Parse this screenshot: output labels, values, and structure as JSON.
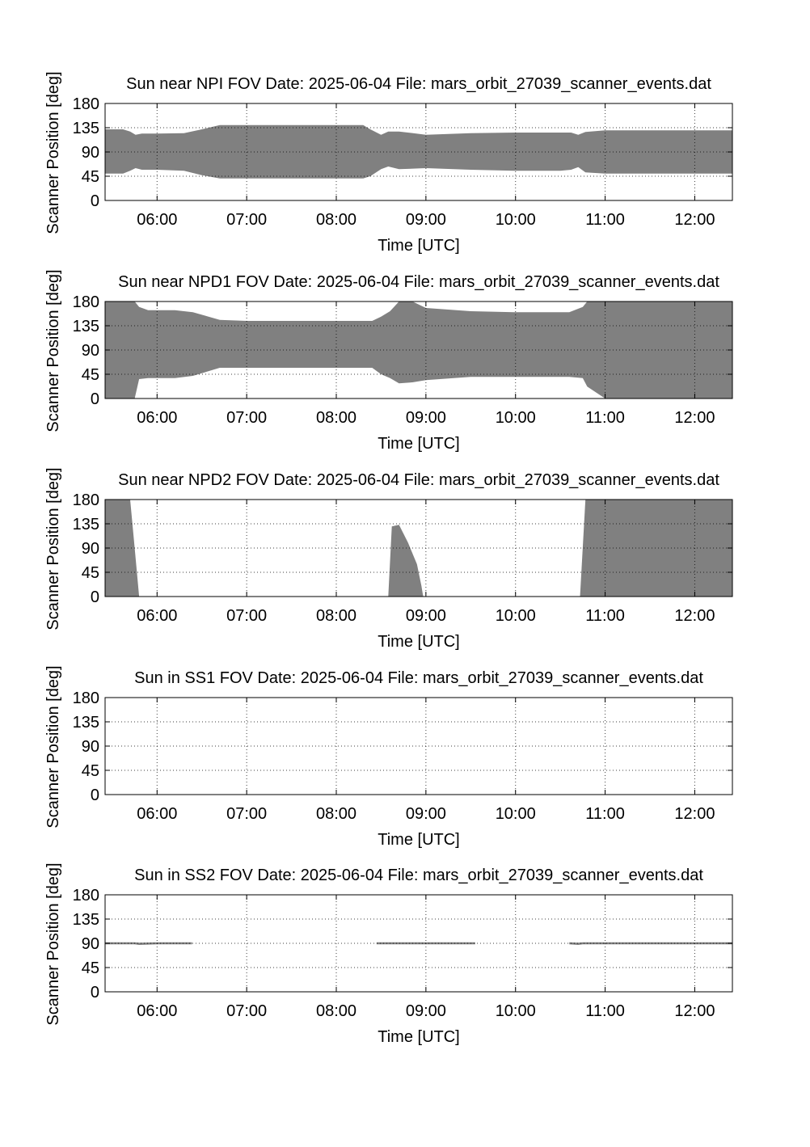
{
  "chart_data": [
    {
      "type": "area",
      "title": "Sun near NPI FOV   Date: 2025-06-04   File: mars_orbit_27039_scanner_events.dat",
      "xlabel": "Time [UTC]",
      "ylabel": "Scanner Position [deg]",
      "xticks": [
        "06:00",
        "07:00",
        "08:00",
        "09:00",
        "10:00",
        "11:00",
        "12:00"
      ],
      "yticks": [
        "0",
        "45",
        "90",
        "135",
        "180"
      ],
      "xlim_hours": [
        5.42,
        12.42
      ],
      "ylim": [
        0,
        180
      ],
      "grid": true,
      "fill_color": "#808080",
      "regions": [
        {
          "x": [
            5.42,
            5.62,
            5.7,
            5.76,
            5.83,
            6.0,
            6.3,
            6.5,
            6.7,
            7.0,
            7.5,
            8.0,
            8.3,
            8.38,
            8.5,
            8.58,
            8.7,
            9.0,
            9.5,
            10.0,
            10.5,
            10.62,
            10.7,
            10.78,
            11.0,
            11.5,
            12.0,
            12.42
          ],
          "upper": [
            132,
            132,
            128,
            122,
            124,
            124,
            125,
            132,
            140,
            140,
            140,
            140,
            140,
            132,
            122,
            128,
            128,
            122,
            125,
            126,
            126,
            126,
            122,
            127,
            130,
            130,
            130,
            130
          ],
          "lower": [
            50,
            50,
            55,
            60,
            57,
            57,
            55,
            47,
            41,
            41,
            41,
            41,
            41,
            45,
            58,
            63,
            58,
            60,
            57,
            55,
            55,
            57,
            62,
            52,
            50,
            50,
            50,
            50
          ]
        }
      ]
    },
    {
      "type": "area",
      "title": "Sun near NPD1 FOV   Date: 2025-06-04   File: mars_orbit_27039_scanner_events.dat",
      "xlabel": "Time [UTC]",
      "ylabel": "Scanner Position [deg]",
      "xticks": [
        "06:00",
        "07:00",
        "08:00",
        "09:00",
        "10:00",
        "11:00",
        "12:00"
      ],
      "yticks": [
        "0",
        "45",
        "90",
        "135",
        "180"
      ],
      "xlim_hours": [
        5.42,
        12.42
      ],
      "ylim": [
        0,
        180
      ],
      "grid": true,
      "fill_color": "#808080",
      "regions": [
        {
          "x": [
            5.42,
            5.75,
            5.8,
            5.9,
            6.2,
            6.4,
            6.7,
            7.0,
            8.0,
            8.4,
            8.5,
            8.6,
            8.7,
            8.85,
            9.0,
            9.5,
            10.0,
            10.4,
            10.6,
            10.75,
            10.8,
            11.0,
            12.42
          ],
          "upper": [
            180,
            180,
            170,
            164,
            164,
            160,
            146,
            144,
            144,
            144,
            152,
            162,
            180,
            180,
            168,
            162,
            160,
            160,
            160,
            170,
            180,
            180,
            180
          ],
          "lower": [
            0,
            0,
            36,
            38,
            38,
            42,
            57,
            57,
            57,
            57,
            45,
            38,
            28,
            30,
            34,
            40,
            40,
            40,
            40,
            38,
            22,
            0,
            0
          ]
        }
      ]
    },
    {
      "type": "area",
      "title": "Sun near NPD2 FOV   Date: 2025-06-04   File: mars_orbit_27039_scanner_events.dat",
      "xlabel": "Time [UTC]",
      "ylabel": "Scanner Position [deg]",
      "xticks": [
        "06:00",
        "07:00",
        "08:00",
        "09:00",
        "10:00",
        "11:00",
        "12:00"
      ],
      "yticks": [
        "0",
        "45",
        "90",
        "135",
        "180"
      ],
      "xlim_hours": [
        5.42,
        12.42
      ],
      "ylim": [
        0,
        180
      ],
      "grid": true,
      "fill_color": "#808080",
      "regions": [
        {
          "x": [
            5.42,
            5.7,
            5.75,
            5.8
          ],
          "upper": [
            180,
            180,
            90,
            0
          ],
          "lower": [
            0,
            0,
            0,
            0
          ]
        },
        {
          "x": [
            8.58,
            8.62,
            8.7,
            8.8,
            8.9,
            8.95,
            8.97
          ],
          "upper": [
            0,
            130,
            133,
            100,
            60,
            20,
            0
          ],
          "lower": [
            0,
            0,
            0,
            0,
            0,
            0,
            0
          ]
        },
        {
          "x": [
            10.72,
            10.78,
            12.42
          ],
          "upper": [
            0,
            180,
            180
          ],
          "lower": [
            0,
            0,
            0
          ]
        }
      ]
    },
    {
      "type": "area",
      "title": "Sun in SS1 FOV   Date: 2025-06-04   File: mars_orbit_27039_scanner_events.dat",
      "xlabel": "Time [UTC]",
      "ylabel": "Scanner Position [deg]",
      "xticks": [
        "06:00",
        "07:00",
        "08:00",
        "09:00",
        "10:00",
        "11:00",
        "12:00"
      ],
      "yticks": [
        "0",
        "45",
        "90",
        "135",
        "180"
      ],
      "xlim_hours": [
        5.42,
        12.42
      ],
      "ylim": [
        0,
        180
      ],
      "grid": true,
      "fill_color": "#808080",
      "regions": []
    },
    {
      "type": "area",
      "title": "Sun in SS2 FOV   Date: 2025-06-04   File: mars_orbit_27039_scanner_events.dat",
      "xlabel": "Time [UTC]",
      "ylabel": "Scanner Position [deg]",
      "xticks": [
        "06:00",
        "07:00",
        "08:00",
        "09:00",
        "10:00",
        "11:00",
        "12:00"
      ],
      "yticks": [
        "0",
        "45",
        "90",
        "135",
        "180"
      ],
      "xlim_hours": [
        5.42,
        12.42
      ],
      "ylim": [
        0,
        180
      ],
      "grid": true,
      "fill_color": "#808080",
      "regions": [
        {
          "x": [
            5.42,
            5.75,
            5.8,
            6.0,
            6.39
          ],
          "upper": [
            92,
            92,
            91,
            92,
            92
          ],
          "lower": [
            88,
            88,
            87,
            88,
            88
          ]
        },
        {
          "x": [
            8.45,
            9.0,
            9.55
          ],
          "upper": [
            92,
            92,
            92
          ],
          "lower": [
            88,
            88,
            88
          ]
        },
        {
          "x": [
            10.6,
            10.7,
            10.75,
            11.0,
            12.42
          ],
          "upper": [
            92,
            91,
            92,
            92,
            92
          ],
          "lower": [
            88,
            87,
            88,
            88,
            88
          ]
        }
      ]
    }
  ]
}
